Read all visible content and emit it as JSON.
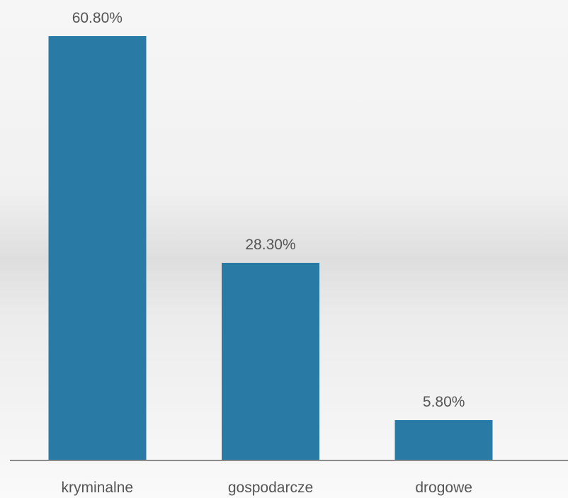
{
  "chart_data": {
    "type": "bar",
    "categories": [
      "kryminalne",
      "gospodarcze",
      "drogowe"
    ],
    "values": [
      60.8,
      28.3,
      5.8
    ],
    "data_labels": [
      "60.80%",
      "28.30%",
      "5.80%"
    ],
    "ylim": [
      0,
      70
    ],
    "grid": false,
    "legend": "none",
    "colors": {
      "bar": "#2a7aa6",
      "axis": "#8c8c8c",
      "label": "#555555"
    }
  }
}
